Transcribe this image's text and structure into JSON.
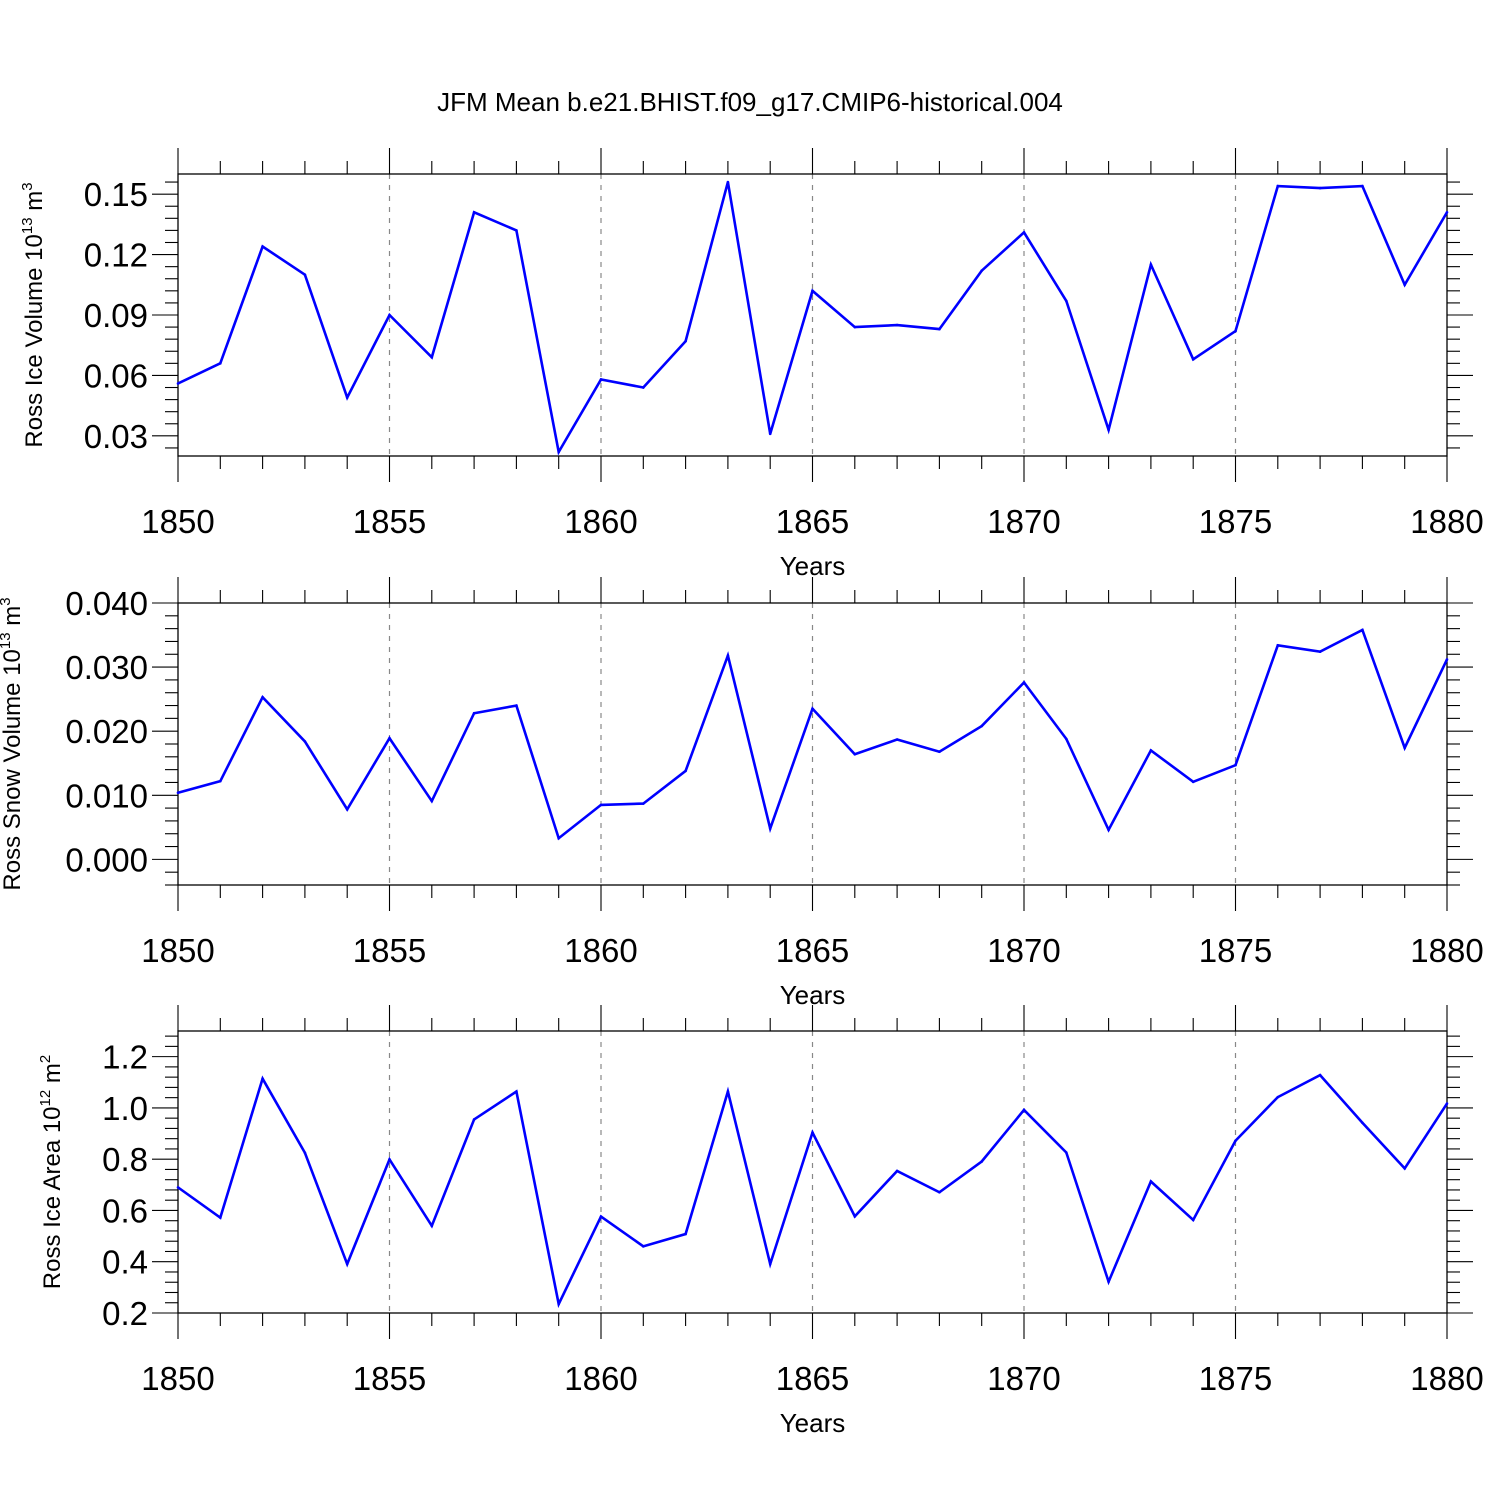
{
  "title": "JFM Mean b.e21.BHIST.f09_g17.CMIP6-historical.004",
  "colors": {
    "line": "#0000ff",
    "axis": "#000000",
    "grid": "#888888"
  },
  "chart_data": [
    {
      "type": "line",
      "xlabel": "Years",
      "ylabel": "Ross Ice Volume 10",
      "ylabel_exp": "13",
      "ylabel_unit": " m",
      "ylabel_unit_exp": "3",
      "xlim": [
        1850,
        1880
      ],
      "ylim": [
        0.02,
        0.16
      ],
      "xticks": [
        "1850",
        "1855",
        "1860",
        "1865",
        "1870",
        "1875",
        "1880"
      ],
      "yticks": [
        "0.03",
        "0.06",
        "0.09",
        "0.12",
        "0.15"
      ],
      "grid": "vertical dashed at major x ticks",
      "series": [
        {
          "x": [
            1850,
            1851,
            1852,
            1853,
            1854,
            1855,
            1856,
            1857,
            1858,
            1859,
            1860,
            1861,
            1862,
            1863,
            1864,
            1865,
            1866,
            1867,
            1868,
            1869,
            1870,
            1871,
            1872,
            1873,
            1874,
            1875,
            1876,
            1877,
            1878,
            1879,
            1880
          ],
          "values": [
            0.056,
            0.066,
            0.124,
            0.11,
            0.049,
            0.09,
            0.069,
            0.141,
            0.132,
            0.022,
            0.058,
            0.054,
            0.077,
            0.156,
            0.031,
            0.102,
            0.084,
            0.085,
            0.083,
            0.112,
            0.131,
            0.097,
            0.033,
            0.115,
            0.068,
            0.082,
            0.154,
            0.153,
            0.154,
            0.105,
            0.141
          ]
        }
      ]
    },
    {
      "type": "line",
      "xlabel": "Years",
      "ylabel": "Ross Snow Volume 10",
      "ylabel_exp": "13",
      "ylabel_unit": " m",
      "ylabel_unit_exp": "3",
      "xlim": [
        1850,
        1880
      ],
      "ylim": [
        -0.004,
        0.04
      ],
      "xticks": [
        "1850",
        "1855",
        "1860",
        "1865",
        "1870",
        "1875",
        "1880"
      ],
      "yticks": [
        "0.000",
        "0.010",
        "0.020",
        "0.030",
        "0.040"
      ],
      "grid": "vertical dashed at major x ticks",
      "series": [
        {
          "x": [
            1850,
            1851,
            1852,
            1853,
            1854,
            1855,
            1856,
            1857,
            1858,
            1859,
            1860,
            1861,
            1862,
            1863,
            1864,
            1865,
            1866,
            1867,
            1868,
            1869,
            1870,
            1871,
            1872,
            1873,
            1874,
            1875,
            1876,
            1877,
            1878,
            1879,
            1880
          ],
          "values": [
            0.0104,
            0.0122,
            0.0253,
            0.0184,
            0.0078,
            0.0189,
            0.0091,
            0.0228,
            0.024,
            0.0033,
            0.0085,
            0.0087,
            0.0138,
            0.0318,
            0.0048,
            0.0235,
            0.0164,
            0.0187,
            0.0168,
            0.0208,
            0.0276,
            0.0188,
            0.0046,
            0.017,
            0.0121,
            0.0147,
            0.0334,
            0.0324,
            0.0358,
            0.0174,
            0.0312
          ]
        }
      ]
    },
    {
      "type": "line",
      "xlabel": "Years",
      "ylabel": "Ross Ice Area 10",
      "ylabel_exp": "12",
      "ylabel_unit": " m",
      "ylabel_unit_exp": "2",
      "xlim": [
        1850,
        1880
      ],
      "ylim": [
        0.2,
        1.3
      ],
      "xticks": [
        "1850",
        "1855",
        "1860",
        "1865",
        "1870",
        "1875",
        "1880"
      ],
      "yticks": [
        "0.2",
        "0.4",
        "0.6",
        "0.8",
        "1.0",
        "1.2"
      ],
      "grid": "vertical dashed at major x ticks",
      "series": [
        {
          "x": [
            1850,
            1851,
            1852,
            1853,
            1854,
            1855,
            1856,
            1857,
            1858,
            1859,
            1860,
            1861,
            1862,
            1863,
            1864,
            1865,
            1866,
            1867,
            1868,
            1869,
            1870,
            1871,
            1872,
            1873,
            1874,
            1875,
            1876,
            1877,
            1878,
            1879,
            1880
          ],
          "values": [
            0.69,
            0.572,
            1.114,
            0.825,
            0.391,
            0.799,
            0.54,
            0.955,
            1.064,
            0.235,
            0.576,
            0.46,
            0.508,
            1.064,
            0.391,
            0.904,
            0.577,
            0.754,
            0.671,
            0.791,
            0.992,
            0.826,
            0.322,
            0.713,
            0.563,
            0.872,
            1.042,
            1.128,
            0.942,
            0.764,
            1.017
          ]
        }
      ]
    }
  ]
}
